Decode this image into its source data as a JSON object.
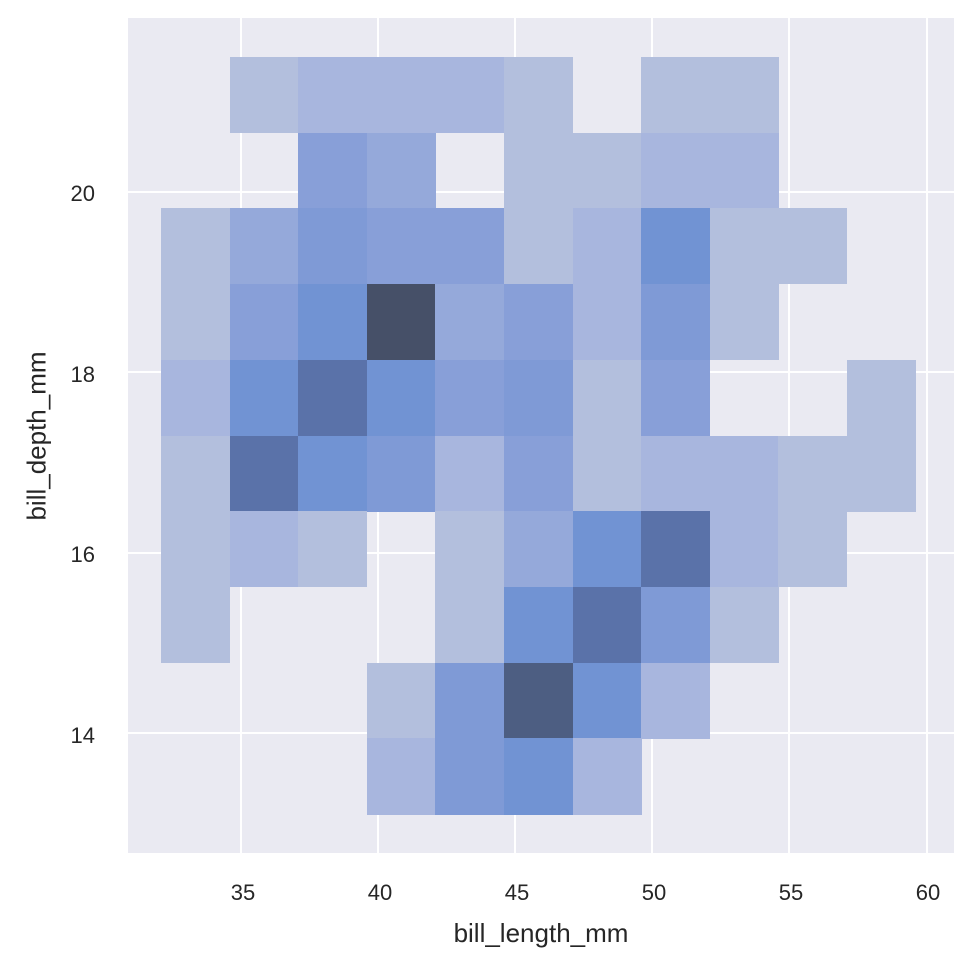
{
  "chart_data": {
    "type": "heatmap",
    "subtype": "2d-histogram",
    "title": "",
    "xlabel": "bill_length_mm",
    "ylabel": "bill_depth_mm",
    "xlim": [
      30.9,
      61.0
    ],
    "ylim": [
      12.67,
      21.93
    ],
    "x_ticks": [
      35,
      40,
      45,
      50,
      55,
      60
    ],
    "y_ticks": [
      14,
      16,
      18,
      20
    ],
    "grid": true,
    "background_color": "#EAEAF2",
    "base_color": "#4C72B0",
    "x_bin_edges": [
      32.1,
      34.6,
      37.1,
      39.6,
      42.1,
      44.6,
      47.1,
      49.6,
      52.1,
      54.6,
      57.1,
      59.6
    ],
    "y_bin_edges_top_to_bottom": [
      21.5,
      20.66,
      19.82,
      18.98,
      18.14,
      17.3,
      16.46,
      15.62,
      14.78,
      13.94,
      13.1
    ],
    "intensity_scale_note": "relative count level per bin, 0 = empty, 10 = max",
    "rows_top_to_bottom": [
      [
        0,
        2,
        3,
        3,
        3,
        2,
        0,
        2,
        2,
        0,
        0
      ],
      [
        0,
        0,
        5,
        4,
        0,
        2,
        2,
        3,
        3,
        0,
        0
      ],
      [
        2,
        4,
        6,
        5,
        5,
        2,
        3,
        7,
        2,
        2,
        0
      ],
      [
        2,
        5,
        7,
        10,
        4,
        5,
        3,
        6,
        2,
        0,
        0
      ],
      [
        3,
        7,
        8,
        7,
        5,
        6,
        2,
        5,
        0,
        0,
        2
      ],
      [
        2,
        8,
        7,
        6,
        3,
        5,
        2,
        3,
        3,
        2,
        2
      ],
      [
        2,
        3,
        2,
        0,
        2,
        4,
        7,
        8,
        3,
        2,
        0
      ],
      [
        2,
        0,
        0,
        0,
        2,
        7,
        8,
        6,
        2,
        0,
        0
      ],
      [
        0,
        0,
        0,
        2,
        6,
        9,
        7,
        3,
        0,
        0,
        0
      ],
      [
        0,
        0,
        0,
        3,
        6,
        7,
        3,
        0,
        0,
        0,
        0
      ]
    ]
  },
  "axes": {
    "x_tick_labels": [
      "35",
      "40",
      "45",
      "50",
      "55",
      "60"
    ],
    "y_tick_labels": [
      "20",
      "18",
      "16",
      "14"
    ],
    "xlabel": "bill_length_mm",
    "ylabel": "bill_depth_mm"
  },
  "palette": [
    "#EAEAF2",
    "#B3BFDD",
    "#A8B6DE",
    "#9FB1DC",
    "#95A9DA",
    "#889FD8",
    "#7F9AD6",
    "#7193D3",
    "#6081BC",
    "#5A72A9",
    "#4D5E82",
    "#465068"
  ]
}
